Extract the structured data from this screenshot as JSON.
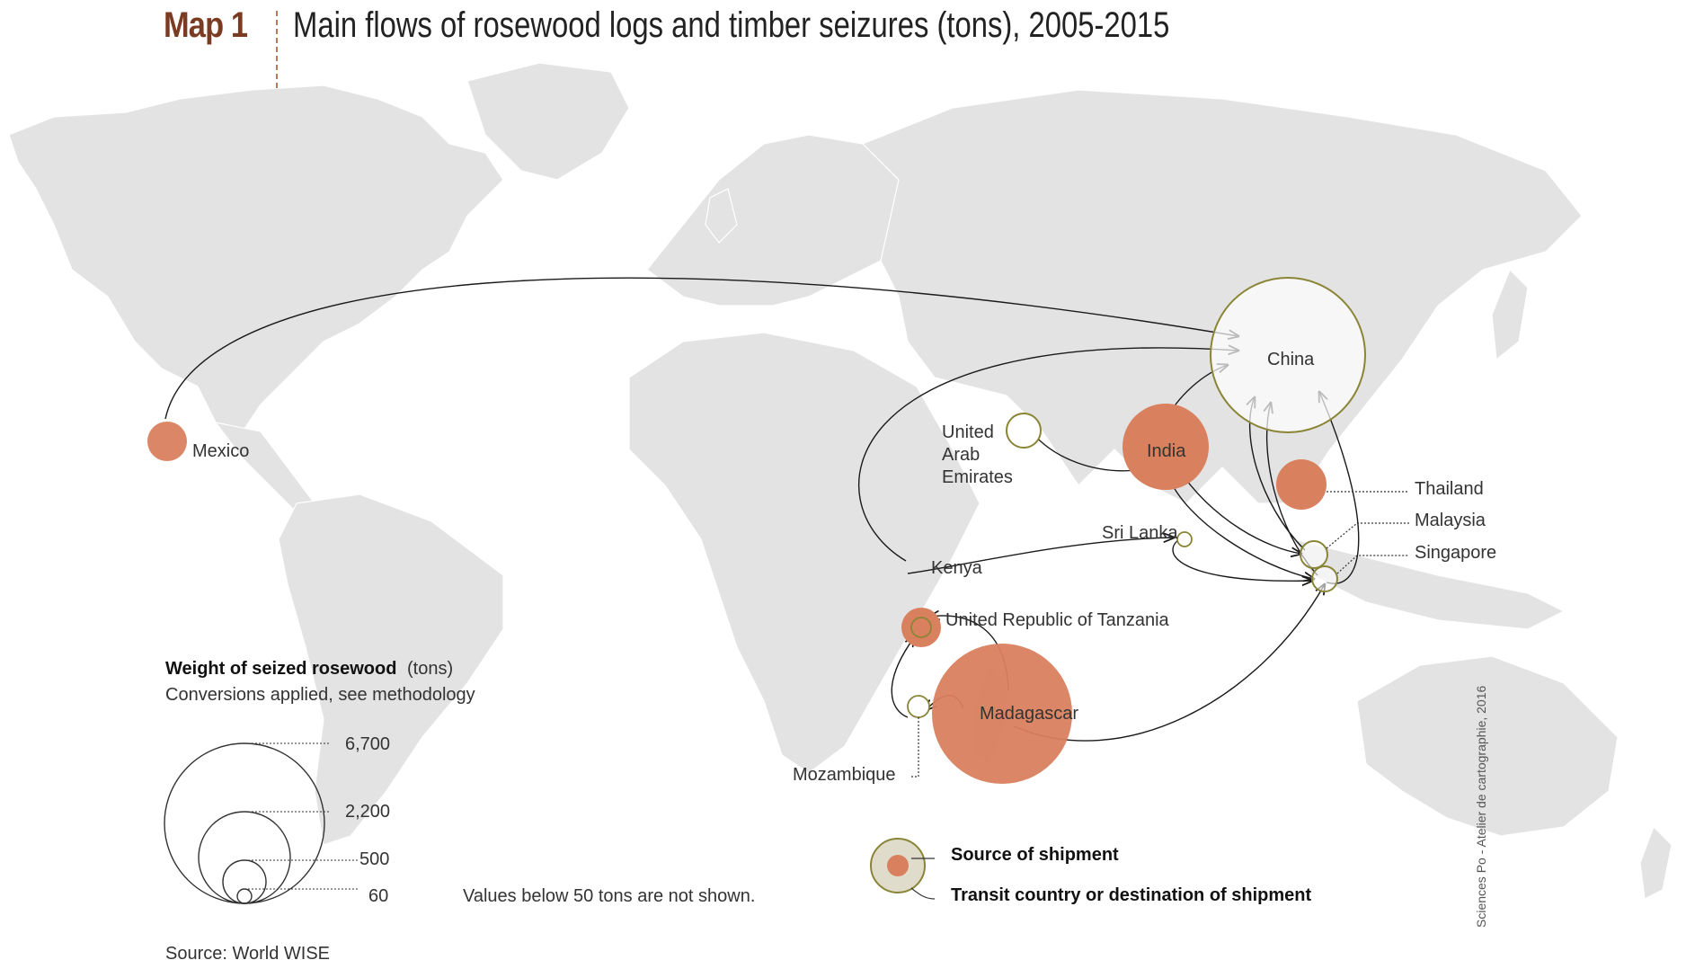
{
  "header": {
    "map_label": "Map 1",
    "title": "Main flows of rosewood logs and timber seizures (tons), 2005-2015"
  },
  "countries": {
    "mexico": "Mexico",
    "china": "China",
    "india": "India",
    "uae_1": "United",
    "uae_2": "Arab",
    "uae_3": "Emirates",
    "thailand": "Thailand",
    "malaysia": "Malaysia",
    "singapore": "Singapore",
    "sri_lanka": "Sri Lanka",
    "kenya": "Kenya",
    "tanzania": "United Republic of Tanzania",
    "madagascar": "Madagascar",
    "mozambique": "Mozambique"
  },
  "size_legend": {
    "title_bold": "Weight of seized rosewood",
    "title_unit": "(tons)",
    "subtitle": "Conversions applied, see methodology",
    "values": [
      "6,700",
      "2,200",
      "500",
      "60"
    ]
  },
  "notes": {
    "threshold": "Values below 50 tons are not shown.",
    "source": "Source: World WISE",
    "credit": "Sciences Po - Atelier de cartographie, 2016"
  },
  "type_legend": {
    "source": "Source of shipment",
    "transit": "Transit country or destination of shipment"
  },
  "colors": {
    "source_fill": "#d9805e",
    "transit_stroke": "#8a8536",
    "land": "#e3e3e3",
    "flow": "#1a1a1a"
  }
}
